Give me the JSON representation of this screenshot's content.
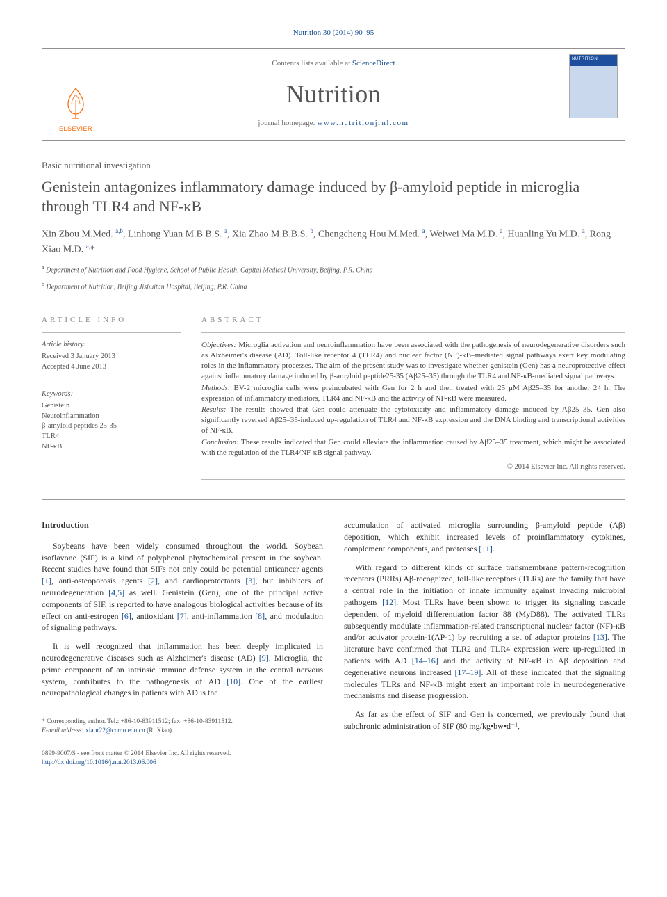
{
  "citation": {
    "journal_link_text": "Nutrition 30 (2014) 90–95",
    "journal_link_href": "#"
  },
  "header": {
    "contents_prefix": "Contents lists available at ",
    "contents_link_text": "ScienceDirect",
    "journal_name": "Nutrition",
    "homepage_prefix": "journal homepage: ",
    "homepage_link_text": "www.nutritionjrnl.com",
    "elsevier_label": "ELSEVIER",
    "cover_title": "NUTRITION"
  },
  "article": {
    "type": "Basic nutritional investigation",
    "title": "Genistein antagonizes inflammatory damage induced by β-amyloid peptide in microglia through TLR4 and NF-κB",
    "authors_html": "Xin Zhou M.Med. <sup>a,b</sup>, Linhong Yuan M.B.B.S. <sup>a</sup>, Xia Zhao M.B.B.S. <sup>b</sup>, Chengcheng Hou M.Med. <sup>a</sup>, Weiwei Ma M.D. <sup>a</sup>, Huanling Yu M.D. <sup>a</sup>, Rong Xiao M.D. <sup>a,</sup>*",
    "affiliations": [
      {
        "label": "a",
        "text": "Department of Nutrition and Food Hygiene, School of Public Health, Capital Medical University, Beijing, P.R. China"
      },
      {
        "label": "b",
        "text": "Department of Nutrition, Beijing Jishuitan Hospital, Beijing, P.R. China"
      }
    ]
  },
  "article_info": {
    "heading": "ARTICLE INFO",
    "history_label": "Article history:",
    "received": "Received 3 January 2013",
    "accepted": "Accepted 4 June 2013",
    "keywords_label": "Keywords:",
    "keywords": [
      "Genistein",
      "Neuroinflammation",
      "β-amyloid peptides 25-35",
      "TLR4",
      "NF-κB"
    ]
  },
  "abstract": {
    "heading": "ABSTRACT",
    "sections": [
      {
        "label": "Objectives:",
        "text": " Microglia activation and neuroinflammation have been associated with the pathogenesis of neurodegenerative disorders such as Alzheimer's disease (AD). Toll-like receptor 4 (TLR4) and nuclear factor (NF)-κB–mediated signal pathways exert key modulating roles in the inflammatory processes. The aim of the present study was to investigate whether genistein (Gen) has a neuroprotective effect against inflammatory damage induced by β-amyloid peptide25-35 (Aβ25–35) through the TLR4 and NF-κB-mediated signal pathways."
      },
      {
        "label": "Methods:",
        "text": " BV-2 microglia cells were preincubated with Gen for 2 h and then treated with 25 μM Aβ25–35 for another 24 h. The expression of inflammatory mediators, TLR4 and NF-κB and the activity of NF-κB were measured."
      },
      {
        "label": "Results:",
        "text": " The results showed that Gen could attenuate the cytotoxicity and inflammatory damage induced by Aβ25–35. Gen also significantly reversed Aβ25–35-induced up-regulation of TLR4 and NF-κB expression and the DNA binding and transcriptional activities of NF-κB."
      },
      {
        "label": "Conclusion:",
        "text": " These results indicated that Gen could alleviate the inflammation caused by Aβ25–35 treatment, which might be associated with the regulation of the TLR4/NF-κB signal pathway."
      }
    ],
    "copyright": "© 2014 Elsevier Inc. All rights reserved."
  },
  "body": {
    "intro_heading": "Introduction",
    "col1_paras": [
      "Soybeans have been widely consumed throughout the world. Soybean isoflavone (SIF) is a kind of polyphenol phytochemical present in the soybean. Recent studies have found that SIFs not only could be potential anticancer agents [1], anti-osteoporosis agents [2], and cardioprotectants [3], but inhibitors of neurodegeneration [4,5] as well. Genistein (Gen), one of the principal active components of SIF, is reported to have analogous biological activities because of its effect on anti-estrogen [6], antioxidant [7], anti-inflammation [8], and modulation of signaling pathways.",
      "It is well recognized that inflammation has been deeply implicated in neurodegenerative diseases such as Alzheimer's disease (AD) [9]. Microglia, the prime component of an intrinsic immune defense system in the central nervous system, contributes to the pathogenesis of AD [10]. One of the earliest neuropathological changes in patients with AD is the"
    ],
    "col2_paras": [
      "accumulation of activated microglia surrounding β-amyloid peptide (Aβ) deposition, which exhibit increased levels of proinflammatory cytokines, complement components, and proteases [11].",
      "With regard to different kinds of surface transmembrane pattern-recognition receptors (PRRs) Aβ-recognized, toll-like receptors (TLRs) are the family that have a central role in the initiation of innate immunity against invading microbial pathogens [12]. Most TLRs have been shown to trigger its signaling cascade dependent of myeloid differentiation factor 88 (MyD88). The activated TLRs subsequently modulate inflammation-related transcriptional nuclear factor (NF)-κB and/or activator protein-1(AP-1) by recruiting a set of adaptor proteins [13]. The literature have confirmed that TLR2 and TLR4 expression were up-regulated in patients with AD [14–16] and the activity of NF-κB in Aβ deposition and degenerative neurons increased [17–19]. All of these indicated that the signaling molecules TLRs and NF-κB might exert an important role in neurodegenerative mechanisms and disease progression.",
      "As far as the effect of SIF and Gen is concerned, we previously found that subchronic administration of SIF (80 mg/kg•bw•d⁻¹,"
    ]
  },
  "footnote": {
    "corresponding": "* Corresponding author. Tel.: +86-10-83911512; fax: +86-10-83911512.",
    "email_label": "E-mail address: ",
    "email": "xiaor22@ccmu.edu.cn",
    "email_suffix": " (R. Xiao)."
  },
  "footer": {
    "line1": "0899-9007/$ - see front matter © 2014 Elsevier Inc. All rights reserved.",
    "doi_label": "http://dx.doi.org/",
    "doi": "10.1016/j.nut.2013.06.006"
  },
  "refs": [
    "[1]",
    "[2]",
    "[3]",
    "[4,5]",
    "[6]",
    "[7]",
    "[8]",
    "[9]",
    "[10]",
    "[11]",
    "[12]",
    "[13]",
    "[14–16]",
    "[17–19]"
  ],
  "colors": {
    "link": "#1a4f8f",
    "text": "#333333",
    "muted": "#555555",
    "border": "#9a9a9a",
    "elsevier_orange": "#ff6600"
  }
}
